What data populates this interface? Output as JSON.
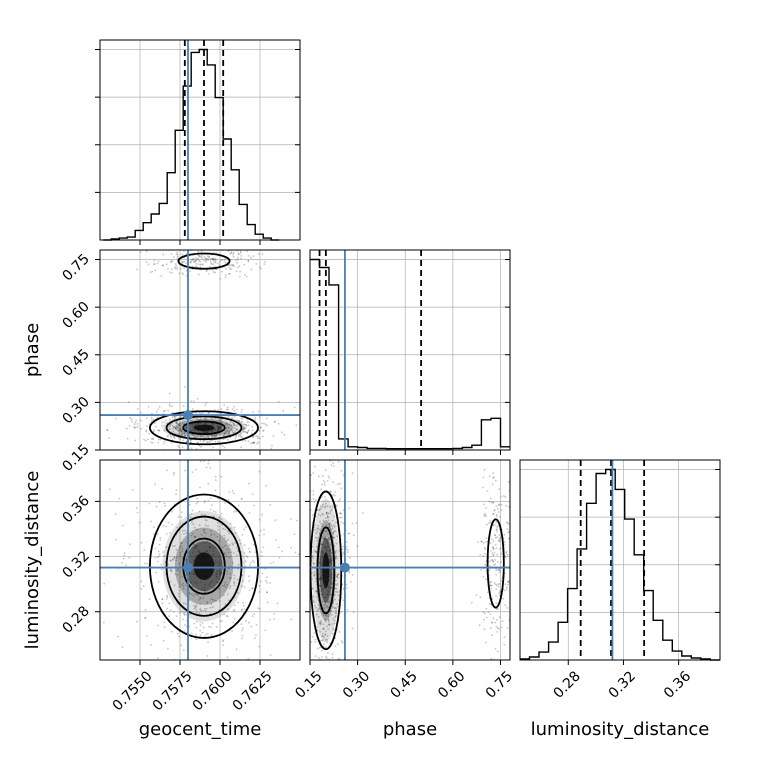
{
  "chart_data": {
    "type": "corner",
    "grid": true,
    "parameters": [
      "geocent_time",
      "phase",
      "luminosity_distance"
    ],
    "truths": {
      "geocent_time": 0.758,
      "phase": 0.26,
      "luminosity_distance": 0.312
    },
    "colors": {
      "truth": "#4a7fb5",
      "hist": "#000000",
      "grid": "#b0b0b0",
      "scatter": "#333333"
    },
    "axes": {
      "geocent_time": {
        "label": "geocent_time",
        "lim": [
          0.7525,
          0.765
        ],
        "ticks": [
          0.755,
          0.7575,
          0.76,
          0.7625
        ],
        "tick_labels": [
          "0.7550",
          "0.7575",
          "0.7600",
          "0.7625"
        ]
      },
      "phase": {
        "label": "phase",
        "lim": [
          0.15,
          0.78
        ],
        "ticks": [
          0.15,
          0.3,
          0.45,
          0.6,
          0.75
        ],
        "tick_labels": [
          "0.15",
          "0.30",
          "0.45",
          "0.60",
          "0.75"
        ]
      },
      "luminosity_distance": {
        "label": "luminosity_distance",
        "lim": [
          0.245,
          0.39
        ],
        "ticks": [
          0.28,
          0.32,
          0.36
        ],
        "tick_labels": [
          "0.28",
          "0.32",
          "0.36"
        ]
      }
    },
    "histograms": [
      {
        "param": "geocent_time",
        "bin_edges": [
          0.7527,
          0.7532,
          0.7537,
          0.7542,
          0.7547,
          0.7552,
          0.7557,
          0.7562,
          0.7567,
          0.7572,
          0.7577,
          0.7582,
          0.7587,
          0.7592,
          0.7597,
          0.7602,
          0.7607,
          0.7612,
          0.7617,
          0.7622,
          0.7627,
          0.7632,
          0.7637
        ],
        "counts": [
          0,
          1,
          2,
          3,
          10,
          18,
          27,
          38,
          70,
          114,
          160,
          195,
          198,
          182,
          148,
          105,
          73,
          37,
          16,
          6,
          2,
          0
        ],
        "quantile_lines": [
          0.7578,
          0.759,
          0.7602
        ]
      },
      {
        "param": "phase",
        "bin_edges": [
          0.15,
          0.18,
          0.21,
          0.24,
          0.27,
          0.3,
          0.33,
          0.36,
          0.39,
          0.42,
          0.45,
          0.48,
          0.51,
          0.54,
          0.57,
          0.6,
          0.63,
          0.66,
          0.69,
          0.72,
          0.75,
          0.78
        ],
        "counts": [
          600,
          575,
          520,
          35,
          10,
          8,
          5,
          5,
          4,
          4,
          4,
          4,
          4,
          4,
          4,
          5,
          8,
          15,
          95,
          100,
          10
        ],
        "quantile_lines": [
          0.18,
          0.2,
          0.5
        ]
      },
      {
        "param": "luminosity_distance",
        "bin_edges": [
          0.245,
          0.2519,
          0.2588,
          0.2657,
          0.2726,
          0.2795,
          0.2864,
          0.2933,
          0.3002,
          0.3071,
          0.314,
          0.3209,
          0.3278,
          0.3347,
          0.3416,
          0.3485,
          0.3554,
          0.3623,
          0.3692,
          0.3761,
          0.383,
          0.3899
        ],
        "counts": [
          1,
          3,
          8,
          18,
          38,
          72,
          112,
          158,
          188,
          192,
          172,
          142,
          106,
          70,
          40,
          20,
          9,
          4,
          2,
          1,
          0
        ],
        "quantile_lines": [
          0.289,
          0.311,
          0.335
        ]
      }
    ],
    "pairs": [
      {
        "x": "geocent_time",
        "y": "phase",
        "modes": [
          {
            "x": 0.759,
            "y": 0.22,
            "sx": 0.0013,
            "sy": 0.02,
            "contours": 3
          },
          {
            "x": 0.759,
            "y": 0.745,
            "sx": 0.001,
            "sy": 0.015,
            "contours": 1
          }
        ]
      },
      {
        "x": "geocent_time",
        "y": "luminosity_distance",
        "modes": [
          {
            "x": 0.759,
            "y": 0.313,
            "sx": 0.0013,
            "sy": 0.02,
            "contours": 3
          }
        ]
      },
      {
        "x": "phase",
        "y": "luminosity_distance",
        "modes": [
          {
            "x": 0.2,
            "y": 0.31,
            "sx": 0.022,
            "sy": 0.026,
            "contours": 2
          },
          {
            "x": 0.735,
            "y": 0.315,
            "sx": 0.016,
            "sy": 0.02,
            "contours": 1
          }
        ]
      }
    ]
  }
}
